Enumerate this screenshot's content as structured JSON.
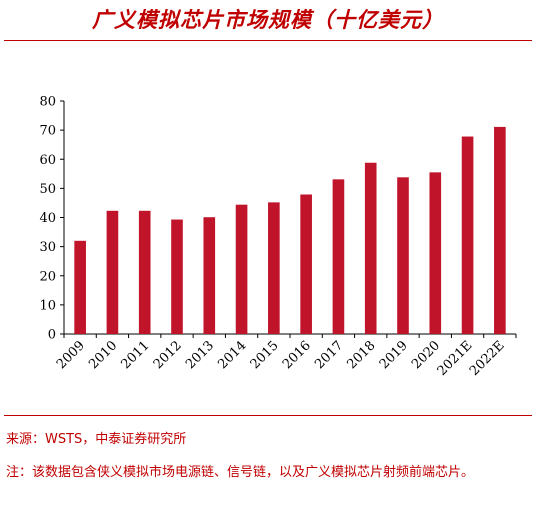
{
  "chart_data": {
    "type": "bar",
    "title": "广义模拟芯片市场规模（十亿美元）",
    "categories": [
      "2009",
      "2010",
      "2011",
      "2012",
      "2013",
      "2014",
      "2015",
      "2016",
      "2017",
      "2018",
      "2019",
      "2020",
      "2021E",
      "2022E"
    ],
    "values": [
      32,
      42.3,
      42.3,
      39.3,
      40.1,
      44.4,
      45.2,
      47.9,
      53.1,
      58.8,
      53.8,
      55.5,
      67.8,
      71.1
    ],
    "ylim": [
      0,
      80
    ],
    "yticks": [
      "0",
      "10",
      "20",
      "30",
      "40",
      "50",
      "60",
      "70",
      "80"
    ],
    "grid": false,
    "bar_color": "#c0142a"
  },
  "notes": {
    "source": "来源：WSTS，中泰证券研究所",
    "footnote": "注：该数据包含侠义模拟市场电源链、信号链，以及广义模拟芯片射频前端芯片。"
  },
  "colors": {
    "accent": "#c00000",
    "bar": "#c0142a"
  }
}
